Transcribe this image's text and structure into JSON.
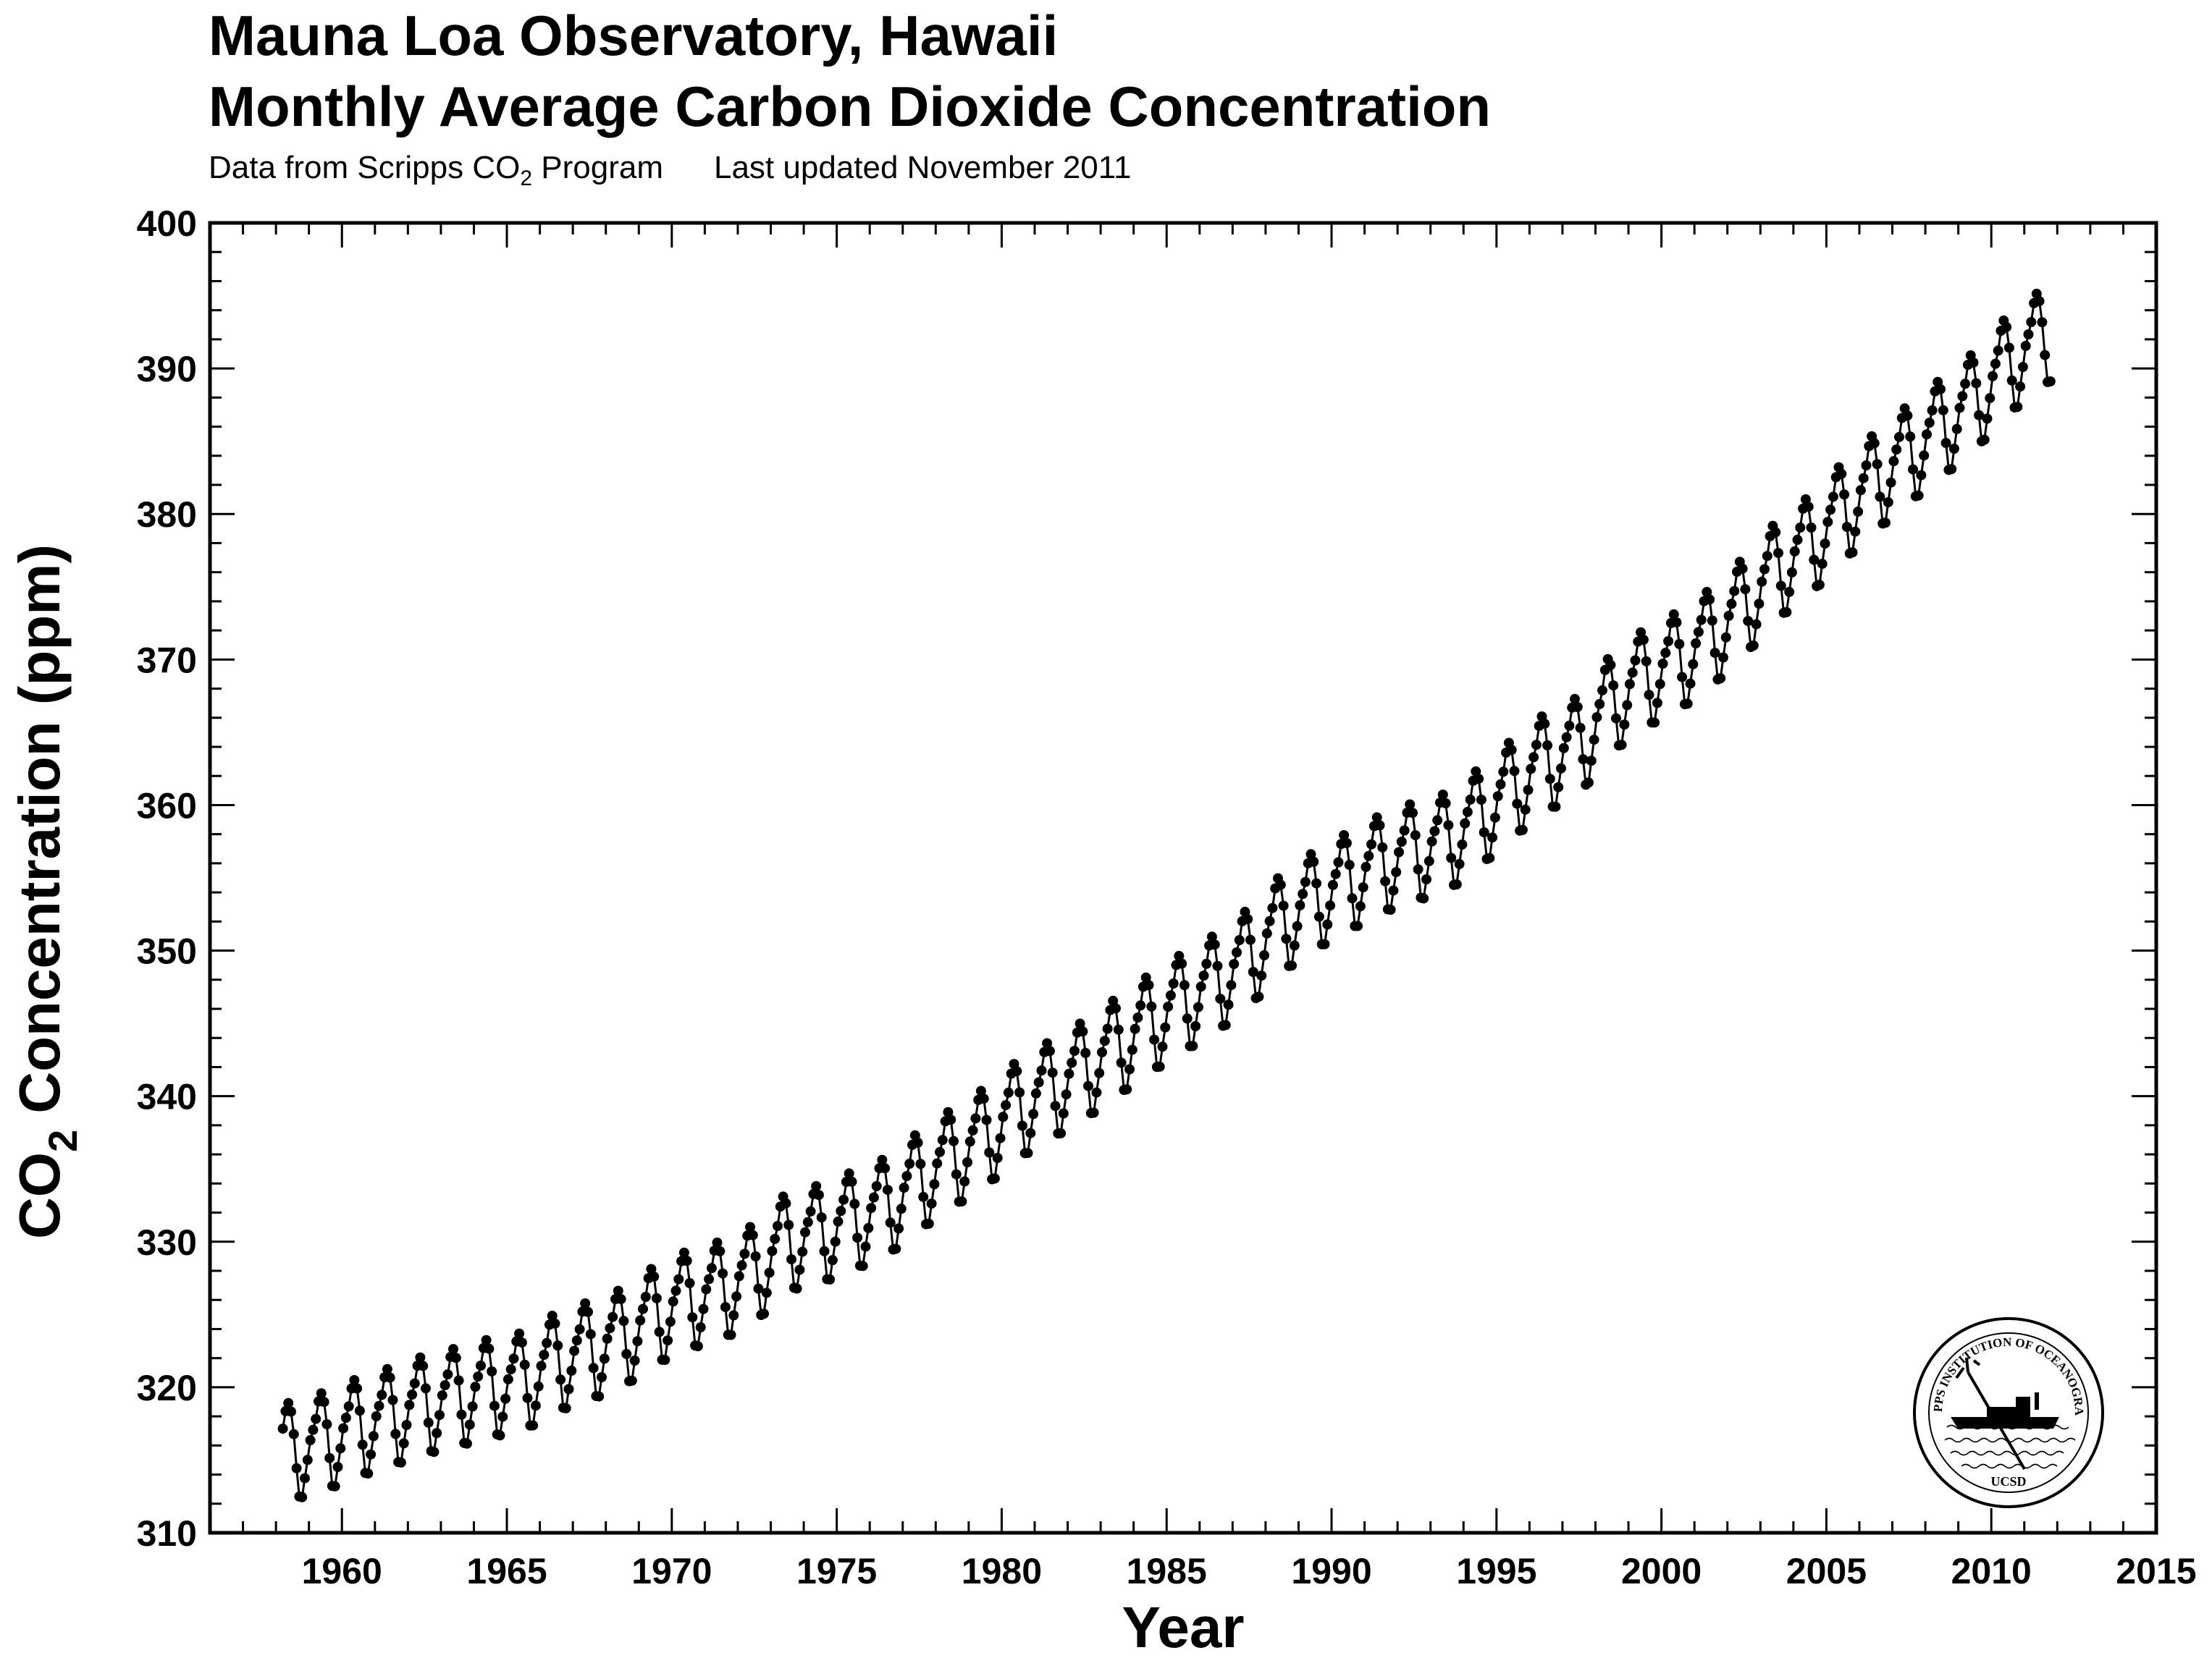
{
  "header": {
    "title_line1": "Mauna Loa Observatory, Hawaii",
    "title_line2": "Monthly Average Carbon Dioxide Concentration",
    "source_prefix": "Data from Scripps CO",
    "source_sub": "2",
    "source_suffix": " Program",
    "updated": "Last updated November 2011"
  },
  "logo": {
    "ring_text": "SCRIPPS INSTITUTION OF OCEANOGRAPHY",
    "bottom_text": "UCSD"
  },
  "chart_data": {
    "type": "line",
    "title": "Monthly Average Carbon Dioxide Concentration",
    "xlabel": "Year",
    "ylabel_main": "CO",
    "ylabel_sub": "2",
    "ylabel_rest": " Concentration (ppm)",
    "xlim": [
      1956,
      2015
    ],
    "ylim": [
      310,
      400
    ],
    "x_ticks": [
      1960,
      1965,
      1970,
      1975,
      1980,
      1985,
      1990,
      1995,
      2000,
      2005,
      2010,
      2015
    ],
    "y_ticks": [
      310,
      320,
      330,
      340,
      350,
      360,
      370,
      380,
      390,
      400
    ],
    "grid": false,
    "marker": "filled-circle",
    "series": [
      {
        "annual_means": [
          {
            "year": 1958,
            "value": 315.3
          },
          {
            "year": 1959,
            "value": 315.97
          },
          {
            "year": 1960,
            "value": 316.91
          },
          {
            "year": 1961,
            "value": 317.64
          },
          {
            "year": 1962,
            "value": 318.45
          },
          {
            "year": 1963,
            "value": 318.99
          },
          {
            "year": 1964,
            "value": 319.62
          },
          {
            "year": 1965,
            "value": 320.04
          },
          {
            "year": 1966,
            "value": 321.38
          },
          {
            "year": 1967,
            "value": 322.16
          },
          {
            "year": 1968,
            "value": 323.04
          },
          {
            "year": 1969,
            "value": 324.62
          },
          {
            "year": 1970,
            "value": 325.68
          },
          {
            "year": 1971,
            "value": 326.32
          },
          {
            "year": 1972,
            "value": 327.45
          },
          {
            "year": 1973,
            "value": 329.68
          },
          {
            "year": 1974,
            "value": 330.18
          },
          {
            "year": 1975,
            "value": 331.11
          },
          {
            "year": 1976,
            "value": 332.04
          },
          {
            "year": 1977,
            "value": 333.83
          },
          {
            "year": 1978,
            "value": 335.4
          },
          {
            "year": 1979,
            "value": 336.84
          },
          {
            "year": 1980,
            "value": 338.75
          },
          {
            "year": 1981,
            "value": 340.11
          },
          {
            "year": 1982,
            "value": 341.45
          },
          {
            "year": 1983,
            "value": 343.05
          },
          {
            "year": 1984,
            "value": 344.65
          },
          {
            "year": 1985,
            "value": 346.12
          },
          {
            "year": 1986,
            "value": 347.42
          },
          {
            "year": 1987,
            "value": 349.19
          },
          {
            "year": 1988,
            "value": 351.57
          },
          {
            "year": 1989,
            "value": 353.12
          },
          {
            "year": 1990,
            "value": 354.39
          },
          {
            "year": 1991,
            "value": 355.61
          },
          {
            "year": 1992,
            "value": 356.45
          },
          {
            "year": 1993,
            "value": 357.1
          },
          {
            "year": 1994,
            "value": 358.83
          },
          {
            "year": 1995,
            "value": 360.82
          },
          {
            "year": 1996,
            "value": 362.61
          },
          {
            "year": 1997,
            "value": 363.73
          },
          {
            "year": 1998,
            "value": 366.7
          },
          {
            "year": 1999,
            "value": 368.38
          },
          {
            "year": 2000,
            "value": 369.55
          },
          {
            "year": 2001,
            "value": 371.14
          },
          {
            "year": 2002,
            "value": 373.28
          },
          {
            "year": 2003,
            "value": 375.8
          },
          {
            "year": 2004,
            "value": 377.52
          },
          {
            "year": 2005,
            "value": 379.8
          },
          {
            "year": 2006,
            "value": 381.9
          },
          {
            "year": 2007,
            "value": 383.79
          },
          {
            "year": 2008,
            "value": 385.6
          },
          {
            "year": 2009,
            "value": 387.43
          },
          {
            "year": 2010,
            "value": 389.9
          },
          {
            "year": 2011,
            "value": 391.65
          }
        ],
        "seasonal_cycle_ppm": [
          0.7,
          1.35,
          2.05,
          3.2,
          3.7,
          3.05,
          1.45,
          -0.95,
          -2.95,
          -3.05,
          -1.8,
          -0.6
        ],
        "first_month": "1958-03",
        "last_month": "2011-10"
      }
    ]
  }
}
